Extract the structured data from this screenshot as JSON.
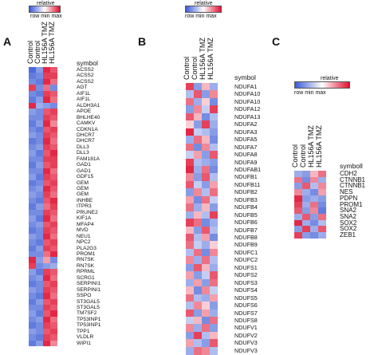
{
  "legend": {
    "title": "relative",
    "scale": "row min max"
  },
  "panels": [
    {
      "letter": "A",
      "columns": [
        "Control",
        "Control",
        "HL156A TMZ",
        "HL156A TMZ"
      ],
      "symbol_header": "symbol",
      "genes": [
        "ACSS2",
        "ACSS2",
        "ACSS2",
        "AGT",
        "AIF1L",
        "AIF1L",
        "ALDH3A1",
        "APOE",
        "BHLHE40",
        "CAMKV",
        "CDKN1A",
        "DHCR7",
        "DHCR7",
        "DLL3",
        "DLL3",
        "FAM181A",
        "GAD1",
        "GAD1",
        "GDF15",
        "GEM",
        "GEM",
        "GEM",
        "INHBE",
        "ITPR3",
        "PRUNE2",
        "KIF1A",
        "MFAP4",
        "MVD",
        "NEU1",
        "NPC2",
        "PLA2G3",
        "PROM1",
        "RN7SK",
        "RN7SK",
        "RPRML",
        "SCRG1",
        "SERPINI1",
        "SERPINI1",
        "SSPO",
        "ST3GAL5",
        "ST3GAL5",
        "TM7SF2",
        "TP53INP1",
        "TP53INP1",
        "TPP1",
        "VLDLR",
        "WIPI1"
      ],
      "values": [
        [
          -0.9,
          -0.6,
          0.9,
          0.7
        ],
        [
          -0.8,
          -0.7,
          0.8,
          0.8
        ],
        [
          -0.7,
          -0.8,
          0.9,
          0.6
        ],
        [
          0.8,
          -0.7,
          0.6,
          -0.7
        ],
        [
          -0.7,
          -0.8,
          0.8,
          0.7
        ],
        [
          -0.8,
          -0.6,
          0.9,
          0.6
        ],
        [
          0.9,
          -0.5,
          -0.6,
          -0.7
        ],
        [
          -0.6,
          -0.7,
          0.7,
          0.8
        ],
        [
          -0.7,
          -0.7,
          0.8,
          0.7
        ],
        [
          -0.8,
          -0.6,
          0.9,
          0.5
        ],
        [
          -0.7,
          -0.8,
          0.7,
          0.8
        ],
        [
          -0.6,
          -0.7,
          0.8,
          0.7
        ],
        [
          -0.8,
          -0.7,
          0.9,
          0.6
        ],
        [
          -0.7,
          -0.6,
          0.8,
          0.7
        ],
        [
          -0.6,
          -0.8,
          0.7,
          0.9
        ],
        [
          -0.7,
          -0.7,
          0.8,
          0.8
        ],
        [
          -0.8,
          -0.6,
          0.7,
          0.8
        ],
        [
          -0.7,
          -0.7,
          0.9,
          0.6
        ],
        [
          -0.6,
          -0.8,
          0.8,
          0.7
        ],
        [
          -0.8,
          -0.7,
          0.7,
          0.8
        ],
        [
          -0.7,
          -0.6,
          0.9,
          0.7
        ],
        [
          -0.6,
          -0.7,
          0.8,
          0.6
        ],
        [
          -0.7,
          -0.8,
          0.7,
          0.9
        ],
        [
          -0.8,
          -0.6,
          0.6,
          0.8
        ],
        [
          -0.7,
          -0.7,
          0.8,
          0.7
        ],
        [
          -0.6,
          -0.8,
          0.9,
          0.6
        ],
        [
          -0.7,
          -0.6,
          0.7,
          0.8
        ],
        [
          -0.8,
          -0.7,
          0.8,
          0.7
        ],
        [
          -0.6,
          -0.7,
          0.9,
          0.6
        ],
        [
          -0.7,
          -0.8,
          0.7,
          0.8
        ],
        [
          -0.8,
          -0.6,
          0.8,
          0.7
        ],
        [
          -0.7,
          -0.7,
          0.6,
          0.9
        ],
        [
          0.9,
          -0.6,
          0.4,
          -0.7
        ],
        [
          0.8,
          -0.7,
          -0.6,
          -0.5
        ],
        [
          -0.6,
          -0.8,
          0.8,
          0.7
        ],
        [
          -0.7,
          -0.6,
          0.9,
          0.6
        ],
        [
          -0.8,
          -0.7,
          0.7,
          0.8
        ],
        [
          -0.6,
          -0.7,
          0.8,
          0.7
        ],
        [
          -0.7,
          -0.8,
          0.9,
          0.6
        ],
        [
          -0.8,
          -0.6,
          0.7,
          0.8
        ],
        [
          -0.7,
          -0.7,
          0.8,
          0.7
        ],
        [
          -0.6,
          -0.8,
          0.7,
          0.9
        ],
        [
          -0.7,
          -0.6,
          0.9,
          0.6
        ],
        [
          -0.8,
          -0.7,
          0.8,
          0.7
        ],
        [
          -0.6,
          -0.7,
          0.7,
          0.8
        ],
        [
          -0.7,
          -0.8,
          0.8,
          0.7
        ],
        [
          -0.8,
          -0.6,
          0.9,
          0.5
        ]
      ]
    },
    {
      "letter": "B",
      "columns": [
        "Control",
        "Control",
        "HL156A TMZ",
        "HL156A TMZ"
      ],
      "symbol_header": "symbol",
      "genes": [
        "NDUFA1",
        "NDUFA10",
        "NDUFA10",
        "NDUFA12",
        "NDUFA13",
        "NDUFA2",
        "NDUFA3",
        "NDUFA5",
        "NDUFA7",
        "NDUFA8",
        "NDUFA9",
        "NDUFAB1",
        "NDUFB1",
        "NDUFB11",
        "NDUFB2",
        "NDUFB3",
        "NDUFB4",
        "NDUFB5",
        "NDUFB6",
        "NDUFB7",
        "NDUFB8",
        "NDUFB9",
        "NDUFC1",
        "NDUFC2",
        "NDUFS1",
        "NDUFS2",
        "NDUFS3",
        "NDUFS4",
        "NDUFS5",
        "NDUFS6",
        "NDUFS7",
        "NDUFS8",
        "NDUFV1",
        "NDUFV2",
        "NDUFV3",
        "NDUFV3"
      ],
      "values": [
        [
          0.8,
          -0.6,
          0.3,
          -0.5
        ],
        [
          -0.4,
          0.7,
          -0.6,
          0.5
        ],
        [
          0.6,
          -0.5,
          0.2,
          -0.7
        ],
        [
          -0.6,
          0.5,
          -0.3,
          0.8
        ],
        [
          0.7,
          0.3,
          -0.7,
          -0.4
        ],
        [
          0.2,
          -0.6,
          0.8,
          -0.5
        ],
        [
          0.9,
          -0.3,
          -0.4,
          -0.6
        ],
        [
          -0.5,
          0.6,
          0.3,
          -0.7
        ],
        [
          0.6,
          -0.7,
          0.5,
          -0.4
        ],
        [
          -0.3,
          0.4,
          -0.6,
          0.7
        ],
        [
          0.8,
          -0.4,
          -0.5,
          -0.6
        ],
        [
          0.9,
          -0.5,
          0.6,
          -0.7
        ],
        [
          0.5,
          -0.6,
          0.7,
          -0.4
        ],
        [
          0.7,
          -0.3,
          -0.6,
          0.4
        ],
        [
          -0.6,
          0.5,
          -0.4,
          0.6
        ],
        [
          0.4,
          -0.7,
          0.6,
          -0.3
        ],
        [
          0.6,
          -0.5,
          0.3,
          -0.6
        ],
        [
          -0.5,
          0.3,
          -0.4,
          0.8
        ],
        [
          0.8,
          0.6,
          -0.7,
          -0.5
        ],
        [
          0.3,
          -0.6,
          0.7,
          -0.4
        ],
        [
          0.7,
          -0.4,
          0.4,
          -0.7
        ],
        [
          0.6,
          -0.3,
          -0.5,
          0.2
        ],
        [
          -0.4,
          0.6,
          -0.7,
          0.5
        ],
        [
          0.5,
          -0.5,
          0.6,
          -0.4
        ],
        [
          -0.6,
          0.7,
          0.3,
          -0.5
        ],
        [
          0.4,
          -0.6,
          -0.3,
          0.7
        ],
        [
          -0.5,
          0.4,
          -0.6,
          0.6
        ],
        [
          0.3,
          -0.7,
          0.5,
          -0.3
        ],
        [
          0.6,
          -0.4,
          -0.5,
          0.4
        ],
        [
          -0.4,
          0.5,
          0.2,
          -0.6
        ],
        [
          0.7,
          -0.6,
          0.4,
          -0.5
        ],
        [
          -0.3,
          0.3,
          -0.7,
          0.6
        ],
        [
          0.5,
          -0.5,
          0.6,
          -0.6
        ],
        [
          -0.6,
          0.8,
          -0.4,
          0.3
        ],
        [
          0.4,
          -0.4,
          -0.6,
          0.7
        ],
        [
          -0.5,
          0.6,
          0.5,
          -0.4
        ]
      ]
    },
    {
      "letter": "C",
      "columns": [
        "Control",
        "Control",
        "HL156A TMZ",
        "HL156A TMZ"
      ],
      "symbol_header": "symboll",
      "genes": [
        "CDH2",
        "CTNNB1",
        "CTNNB1",
        "NES",
        "PDPN",
        "PROM1",
        "SNA2",
        "SNA2",
        "SOX2",
        "SOX2",
        "ZEB1"
      ],
      "values": [
        [
          -0.5,
          -0.6,
          0.3,
          0.6
        ],
        [
          0.6,
          -0.7,
          0.5,
          -0.5
        ],
        [
          -0.6,
          0.7,
          -0.4,
          0.5
        ],
        [
          0.5,
          -0.5,
          -0.7,
          0.4
        ],
        [
          0.9,
          -0.6,
          -0.5,
          -0.6
        ],
        [
          0.8,
          -0.5,
          0.6,
          -0.7
        ],
        [
          0.7,
          -0.6,
          0.5,
          -0.8
        ],
        [
          -0.5,
          0.7,
          -0.6,
          0.6
        ],
        [
          0.9,
          -0.5,
          -0.7,
          -0.4
        ],
        [
          -0.6,
          0.8,
          -0.5,
          0.7
        ],
        [
          0.8,
          -0.6,
          -0.7,
          -0.5
        ]
      ]
    }
  ],
  "colors": {
    "low": "#3b5bd6",
    "mid": "#ffffff",
    "high": "#e01030"
  }
}
